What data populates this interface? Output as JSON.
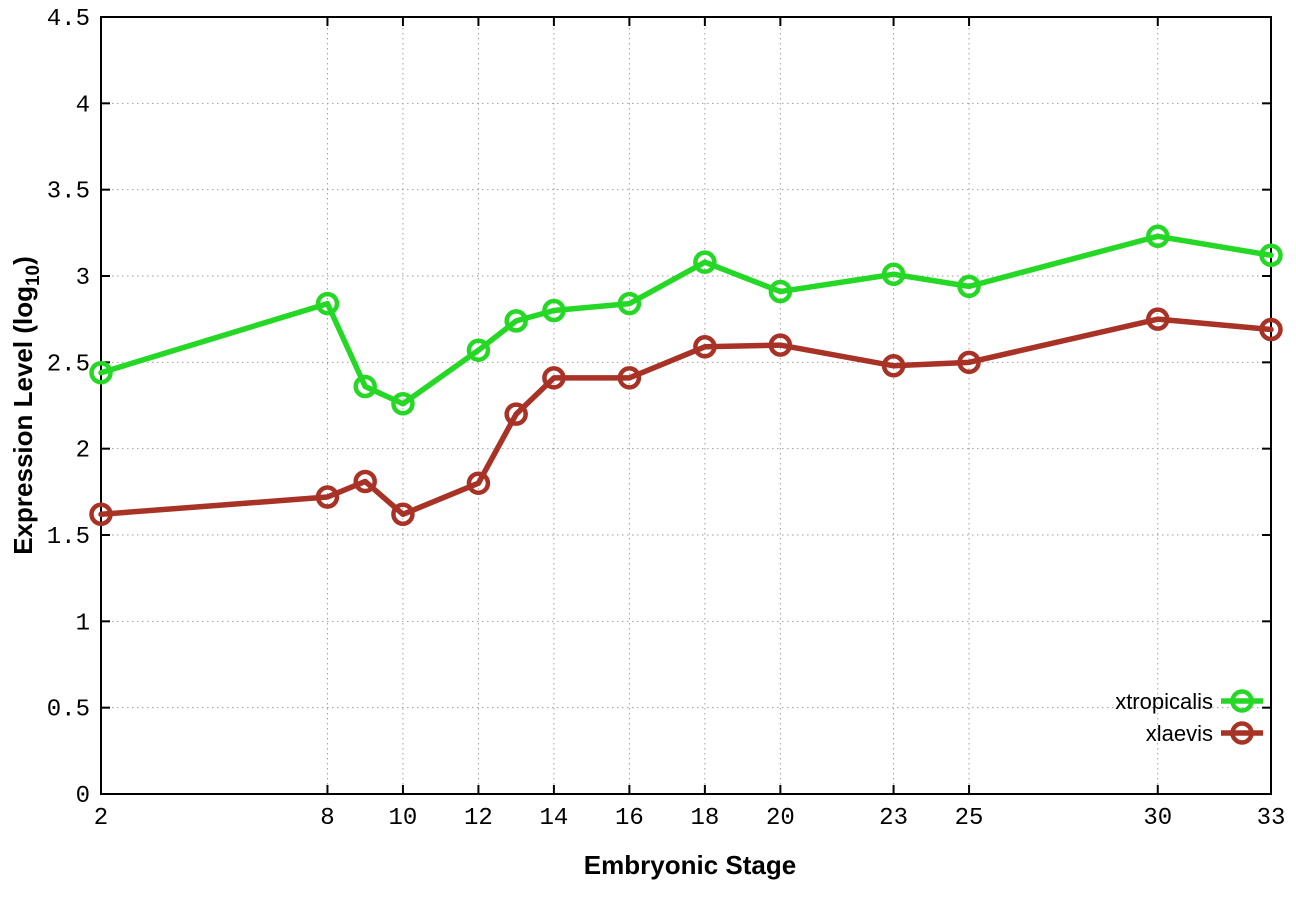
{
  "chart_data": {
    "type": "line",
    "title": "",
    "xlabel": "Embryonic Stage",
    "ylabel": "Expression Level (log10)",
    "ylabel_parts": {
      "main": "Expression Level (log",
      "subscript": "10",
      "end": ")"
    },
    "x": [
      2,
      8,
      9,
      10,
      12,
      13,
      14,
      16,
      18,
      20,
      23,
      25,
      30,
      33
    ],
    "series": [
      {
        "name": "xtropicalis",
        "color": "#25d825",
        "values": [
          2.44,
          2.84,
          2.36,
          2.26,
          2.57,
          2.74,
          2.8,
          2.84,
          3.08,
          2.91,
          3.01,
          2.94,
          3.23,
          3.12
        ]
      },
      {
        "name": "xlaevis",
        "color": "#a93226",
        "values": [
          1.62,
          1.72,
          1.81,
          1.62,
          1.8,
          2.2,
          2.41,
          2.41,
          2.59,
          2.6,
          2.48,
          2.5,
          2.75,
          2.69
        ]
      }
    ],
    "xlim": [
      2,
      33
    ],
    "ylim": [
      0,
      4.5
    ],
    "xticks": [
      2,
      8,
      10,
      12,
      14,
      16,
      18,
      20,
      23,
      25,
      30,
      33
    ],
    "yticks": [
      0,
      0.5,
      1,
      1.5,
      2,
      2.5,
      3,
      3.5,
      4,
      4.5
    ],
    "grid": true,
    "legend_position": "inside-bottom-right",
    "marker": "open-circle",
    "background_color": "#ffffff",
    "axis_color": "#000000",
    "grid_color": "#9e9e9e"
  }
}
